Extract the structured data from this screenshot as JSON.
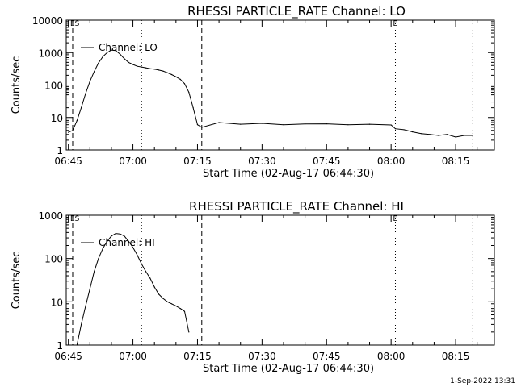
{
  "footer": {
    "date_stamp": "1-Sep-2022 13:31"
  },
  "chart_data": [
    {
      "type": "line",
      "title": "RHESSI PARTICLE_RATE Channel: LO",
      "xlabel": "Start Time (02-Aug-17 06:44:30)",
      "ylabel": "Counts/sec",
      "yscale": "log",
      "xlim": [
        "06:44:30",
        "08:24:00"
      ],
      "ylim": [
        1,
        10000
      ],
      "x_ticks": [
        "06:45",
        "07:00",
        "07:15",
        "07:30",
        "07:45",
        "08:00",
        "08:15"
      ],
      "y_ticks": [
        "1",
        "10",
        "100",
        "1000",
        "10000"
      ],
      "legend": {
        "position": "top-left",
        "entries": [
          "Channel: LO"
        ]
      },
      "markers": [
        {
          "label": "ES",
          "time": "06:46",
          "style": "dashed"
        },
        {
          "label": "",
          "time": "07:02",
          "style": "dotted"
        },
        {
          "label": "",
          "time": "07:16",
          "style": "dashed"
        },
        {
          "label": "E",
          "time": "08:01",
          "style": "dotted"
        },
        {
          "label": "",
          "time": "08:19",
          "style": "dotted"
        }
      ],
      "series": [
        {
          "name": "Channel: LO",
          "x": [
            "06:45",
            "06:46",
            "06:47",
            "06:48",
            "06:49",
            "06:50",
            "06:51",
            "06:52",
            "06:53",
            "06:54",
            "06:55",
            "06:56",
            "06:57",
            "06:58",
            "06:59",
            "07:00",
            "07:01",
            "07:02",
            "07:03",
            "07:04",
            "07:05",
            "07:06",
            "07:07",
            "07:08",
            "07:09",
            "07:10",
            "07:11",
            "07:12",
            "07:13",
            "07:14",
            "07:15",
            "07:16",
            "07:20",
            "07:25",
            "07:30",
            "07:35",
            "07:40",
            "07:45",
            "07:50",
            "07:55",
            "08:00",
            "08:01",
            "08:03",
            "08:05",
            "08:07",
            "08:09",
            "08:11",
            "08:13",
            "08:15",
            "08:17",
            "08:19"
          ],
          "values": [
            3.5,
            4,
            8,
            20,
            55,
            130,
            260,
            480,
            750,
            1000,
            1200,
            1150,
            900,
            650,
            500,
            430,
            380,
            360,
            340,
            320,
            310,
            290,
            270,
            240,
            210,
            180,
            150,
            110,
            60,
            20,
            6,
            5,
            7,
            6.2,
            6.6,
            6,
            6.3,
            6.4,
            6,
            6.2,
            5.9,
            4.5,
            4.2,
            3.6,
            3.2,
            3,
            2.8,
            3,
            2.5,
            2.8,
            2.8
          ]
        }
      ]
    },
    {
      "type": "line",
      "title": "RHESSI PARTICLE_RATE Channel: HI",
      "xlabel": "Start Time (02-Aug-17 06:44:30)",
      "ylabel": "Counts/sec",
      "yscale": "log",
      "xlim": [
        "06:44:30",
        "08:24:00"
      ],
      "ylim": [
        1,
        1000
      ],
      "x_ticks": [
        "06:45",
        "07:00",
        "07:15",
        "07:30",
        "07:45",
        "08:00",
        "08:15"
      ],
      "y_ticks": [
        "1",
        "10",
        "100",
        "1000"
      ],
      "legend": {
        "position": "top-left",
        "entries": [
          "Channel: HI"
        ]
      },
      "markers": [
        {
          "label": "ES",
          "time": "06:46",
          "style": "dashed"
        },
        {
          "label": "",
          "time": "07:02",
          "style": "dotted"
        },
        {
          "label": "",
          "time": "07:16",
          "style": "dashed"
        },
        {
          "label": "E",
          "time": "08:01",
          "style": "dotted"
        },
        {
          "label": "",
          "time": "08:19",
          "style": "dotted"
        }
      ],
      "series": [
        {
          "name": "Channel: HI",
          "x": [
            "06:47",
            "06:48",
            "06:49",
            "06:50",
            "06:51",
            "06:52",
            "06:53",
            "06:54",
            "06:55",
            "06:56",
            "06:57",
            "06:58",
            "06:59",
            "07:00",
            "07:01",
            "07:02",
            "07:03",
            "07:04",
            "07:05",
            "07:06",
            "07:07",
            "07:08",
            "07:09",
            "07:10",
            "07:11",
            "07:12",
            "07:13"
          ],
          "values": [
            1,
            3,
            8,
            20,
            50,
            100,
            170,
            250,
            330,
            380,
            370,
            330,
            250,
            180,
            120,
            75,
            50,
            35,
            22,
            15,
            12,
            10,
            9,
            8,
            7,
            6,
            2
          ]
        }
      ]
    }
  ]
}
